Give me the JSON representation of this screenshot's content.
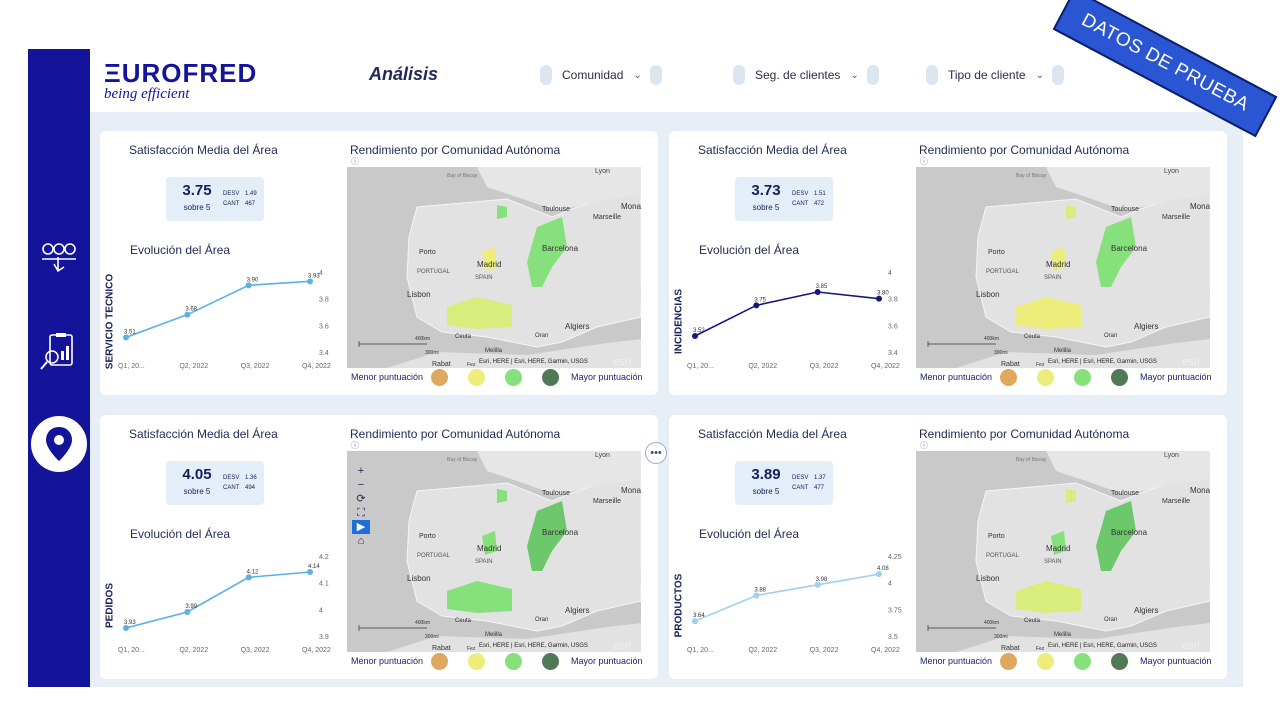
{
  "header": {
    "logo_main": "ΞUROFRED",
    "logo_tag": "being efficient",
    "page_title": "Análisis",
    "banner": "DATOS DE PRUEBA",
    "filters": [
      {
        "label": "Comunidad",
        "chevron": "⌄"
      },
      {
        "label": "Seg. de clientes",
        "chevron": "⌄"
      },
      {
        "label": "Tipo de cliente",
        "chevron": "⌄"
      }
    ]
  },
  "sidebar": {
    "icons": [
      "satisfaction-faces-icon",
      "report-search-icon",
      "location-pin-icon"
    ]
  },
  "common": {
    "kpi_title": "Satisfacción Media del Área",
    "evo_title": "Evolución del Área",
    "map_title": "Rendimiento por Comunidad Autónoma",
    "info": "ⓘ",
    "sobre": "sobre 5",
    "desv": "DESV",
    "cant": "CANT",
    "legend_low": "Menor puntuación",
    "legend_high": "Mayor puntuación",
    "legend_colors": [
      "#e0a85e",
      "#eded7c",
      "#86e07c",
      "#4f7a55"
    ],
    "more": "•••",
    "map_labels": {
      "lyon": "Lyon",
      "toulouse": "Toulouse",
      "marseille": "Marseille",
      "monaco": "Mona",
      "porto": "Porto",
      "portugal": "PORTUGAL",
      "madrid": "Madrid",
      "spain": "SPAIN",
      "barcelona": "Barcelona",
      "lisbon": "Lisbon",
      "algiers": "Algiers",
      "rabat": "Rabat",
      "bay": "Bay of Biscay",
      "ceuta": "Ceuta",
      "melilla": "Melilla",
      "oran": "Oran",
      "fez": "Fez",
      "scale_km": "400km",
      "scale_mi": "300mi",
      "attrib": "Esri, HERE | Esri, HERE, Garmin, USGS",
      "esri": "esri"
    },
    "map_controls": [
      "+",
      "−",
      "⟳",
      "⛶",
      "▶",
      "⌂"
    ]
  },
  "panels": [
    {
      "name": "SERVICIO TECNICO",
      "kpi": {
        "value": "3.75",
        "desv": "1.49",
        "cant": "467"
      },
      "axis_ticks": [
        "4",
        "3.8",
        "3.6",
        "3.4"
      ],
      "x_labels": [
        "Q1, 20...",
        "Q2, 2022",
        "Q3, 2022",
        "Q4, 2022"
      ],
      "line_color": "#5bb0e6",
      "chart_data": {
        "type": "line",
        "categories": [
          "Q1, 20...",
          "Q2, 2022",
          "Q3, 2022",
          "Q4, 2022"
        ],
        "values": [
          3.51,
          3.68,
          3.9,
          3.93
        ],
        "ylim": [
          3.4,
          4
        ]
      },
      "point_labels": [
        "3.51",
        "3.68",
        "3.90",
        "3.93"
      ]
    },
    {
      "name": "INCIDENCIAS",
      "kpi": {
        "value": "3.73",
        "desv": "1.51",
        "cant": "472"
      },
      "axis_ticks": [
        "4",
        "3.8",
        "3.6",
        "3.4"
      ],
      "x_labels": [
        "Q1, 20...",
        "Q2, 2022",
        "Q3, 2022",
        "Q4, 2022"
      ],
      "line_color": "#14187e",
      "chart_data": {
        "type": "line",
        "categories": [
          "Q1, 20...",
          "Q2, 2022",
          "Q3, 2022",
          "Q4, 2022"
        ],
        "values": [
          3.52,
          3.75,
          3.85,
          3.8
        ],
        "ylim": [
          3.4,
          4
        ]
      },
      "point_labels": [
        "3.52",
        "3.75",
        "3.85",
        "3.80"
      ]
    },
    {
      "name": "PEDIDOS",
      "kpi": {
        "value": "4.05",
        "desv": "1.36",
        "cant": "494"
      },
      "axis_ticks": [
        "4.2",
        "4.1",
        "4",
        "3.9"
      ],
      "x_labels": [
        "Q1, 20...",
        "Q2, 2022",
        "Q3, 2022",
        "Q4, 2022"
      ],
      "line_color": "#5bb0e6",
      "chart_data": {
        "type": "line",
        "categories": [
          "Q1, 20...",
          "Q2, 2022",
          "Q3, 2022",
          "Q4, 2022"
        ],
        "values": [
          3.93,
          3.99,
          4.12,
          4.14
        ],
        "ylim": [
          3.9,
          4.2
        ]
      },
      "point_labels": [
        "3.93",
        "3.99",
        "4.12",
        "4.14"
      ]
    },
    {
      "name": "PRODUCTOS",
      "kpi": {
        "value": "3.89",
        "desv": "1.37",
        "cant": "477"
      },
      "axis_ticks": [
        "4.25",
        "4",
        "3.75",
        "3.5"
      ],
      "x_labels": [
        "Q1, 20...",
        "Q2, 2022",
        "Q3, 2022",
        "Q4, 2022"
      ],
      "line_color": "#9ed0ee",
      "chart_data": {
        "type": "line",
        "categories": [
          "Q1, 20...",
          "Q2, 2022",
          "Q3, 2022",
          "Q4, 2022"
        ],
        "values": [
          3.64,
          3.88,
          3.98,
          4.08
        ],
        "ylim": [
          3.5,
          4.25
        ]
      },
      "point_labels": [
        "3.64",
        "3.88",
        "3.98",
        "4.08"
      ]
    }
  ]
}
